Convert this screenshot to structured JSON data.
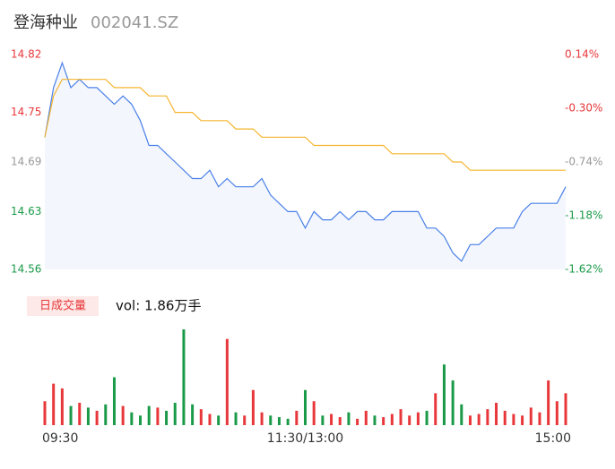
{
  "chart_data": {
    "type": "line",
    "title": "登海种业",
    "subtitle": "002041.SZ",
    "categories": [
      "09:30",
      null,
      null,
      null,
      null,
      null,
      null,
      null,
      null,
      null,
      null,
      null,
      null,
      null,
      null,
      null,
      null,
      null,
      null,
      null,
      null,
      null,
      null,
      null,
      null,
      null,
      null,
      null,
      null,
      null,
      "11:30/13:00",
      null,
      null,
      null,
      null,
      null,
      null,
      null,
      null,
      null,
      null,
      null,
      null,
      null,
      null,
      null,
      null,
      null,
      null,
      null,
      null,
      null,
      null,
      null,
      null,
      null,
      null,
      null,
      null,
      null,
      "15:00"
    ],
    "series": [
      {
        "color": "#4a80e8",
        "values": [
          14.72,
          14.78,
          14.81,
          14.78,
          14.79,
          14.78,
          14.78,
          14.77,
          14.76,
          14.77,
          14.76,
          14.74,
          14.71,
          14.71,
          14.7,
          14.69,
          14.68,
          14.67,
          14.67,
          14.68,
          14.66,
          14.67,
          14.66,
          14.66,
          14.66,
          14.67,
          14.65,
          14.64,
          14.63,
          14.63,
          14.61,
          14.63,
          14.62,
          14.62,
          14.63,
          14.62,
          14.63,
          14.63,
          14.62,
          14.62,
          14.63,
          14.63,
          14.63,
          14.63,
          14.61,
          14.61,
          14.6,
          14.58,
          14.57,
          14.59,
          14.59,
          14.6,
          14.61,
          14.61,
          14.61,
          14.63,
          14.64,
          14.64,
          14.64,
          14.64,
          14.66
        ]
      },
      {
        "color": "#f5b52e",
        "values": [
          14.72,
          14.77,
          14.79,
          14.79,
          14.79,
          14.79,
          14.79,
          14.79,
          14.78,
          14.78,
          14.78,
          14.78,
          14.77,
          14.77,
          14.77,
          14.75,
          14.75,
          14.75,
          14.74,
          14.74,
          14.74,
          14.74,
          14.73,
          14.73,
          14.73,
          14.72,
          14.72,
          14.72,
          14.72,
          14.72,
          14.72,
          14.71,
          14.71,
          14.71,
          14.71,
          14.71,
          14.71,
          14.71,
          14.71,
          14.71,
          14.7,
          14.7,
          14.7,
          14.7,
          14.7,
          14.7,
          14.7,
          14.69,
          14.69,
          14.68,
          14.68,
          14.68,
          14.68,
          14.68,
          14.68,
          14.68,
          14.68,
          14.68,
          14.68,
          14.68,
          14.68
        ]
      }
    ],
    "ylim": [
      14.56,
      14.82
    ],
    "yticks": [
      14.82,
      14.75,
      14.69,
      14.63,
      14.56
    ],
    "y2lim": [
      -1.62,
      0.14
    ],
    "y2ticks": [
      {
        "value": 0.14,
        "label": "0.14%"
      },
      {
        "value": -0.3,
        "label": "-0.30%"
      },
      {
        "value": -0.74,
        "label": "-0.74%"
      },
      {
        "value": -1.18,
        "label": "-1.18%"
      },
      {
        "value": -1.62,
        "label": "-1.62%"
      }
    ],
    "tick_colors": [
      "#e8373a",
      "#e8373a",
      "#999999",
      "#1a9a48",
      "#1a9a48"
    ],
    "volume": {
      "type": "bar",
      "label": "日成交量",
      "summary": "vol: 1.86万手",
      "up_color": "#e8373a",
      "down_color": "#1a9a48",
      "values": [
        150,
        260,
        230,
        120,
        140,
        110,
        90,
        130,
        300,
        120,
        80,
        60,
        120,
        110,
        90,
        140,
        600,
        130,
        100,
        70,
        60,
        540,
        80,
        60,
        220,
        80,
        60,
        50,
        40,
        90,
        220,
        150,
        60,
        70,
        50,
        80,
        40,
        90,
        60,
        50,
        70,
        100,
        60,
        80,
        90,
        200,
        380,
        280,
        130,
        60,
        70,
        100,
        140,
        90,
        70,
        60,
        110,
        80,
        280,
        150,
        200
      ]
    }
  }
}
